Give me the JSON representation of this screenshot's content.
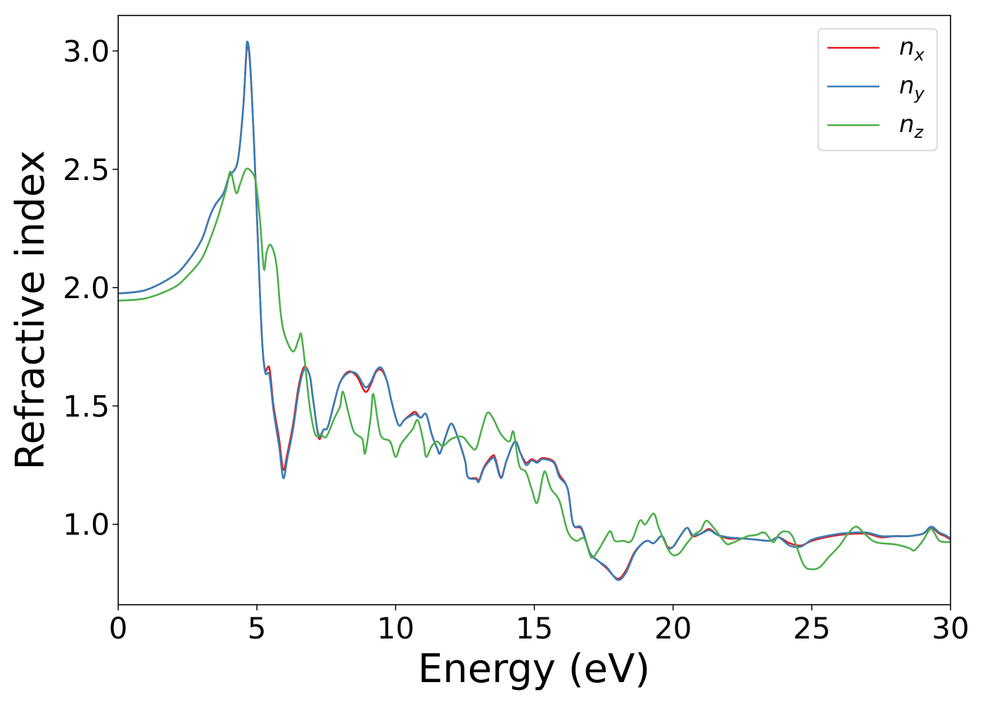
{
  "chart_data": {
    "type": "line",
    "title": "",
    "xlabel": "Energy (eV)",
    "ylabel": "Refractive index",
    "xlim": [
      0,
      30
    ],
    "ylim": [
      0.66,
      3.15
    ],
    "xticks": [
      0,
      5,
      10,
      15,
      20,
      25,
      30
    ],
    "xtick_labels": [
      "0",
      "5",
      "10",
      "15",
      "20",
      "25",
      "30"
    ],
    "yticks": [
      1.0,
      1.5,
      2.0,
      2.5,
      3.0
    ],
    "ytick_labels": [
      "1.0",
      "1.5",
      "2.0",
      "2.5",
      "3.0"
    ],
    "grid": false,
    "legend_placement": "top-right",
    "series": [
      {
        "name": "n",
        "subscript": "x",
        "color": "#e41a1c",
        "x": [
          0,
          1,
          2,
          2.5,
          3,
          3.3,
          3.5,
          3.8,
          4.0,
          4.3,
          4.5,
          4.6,
          4.65,
          4.75,
          4.9,
          5.0,
          5.1,
          5.2,
          5.3,
          5.45,
          5.6,
          5.8,
          5.95,
          6.1,
          6.3,
          6.5,
          6.7,
          6.9,
          7.0,
          7.15,
          7.25,
          7.4,
          7.55,
          7.8,
          8.0,
          8.3,
          8.6,
          8.9,
          9.1,
          9.3,
          9.5,
          9.7,
          9.85,
          10.1,
          10.3,
          10.5,
          10.7,
          10.9,
          11.1,
          11.3,
          11.5,
          11.6,
          11.8,
          12.0,
          12.2,
          12.5,
          12.6,
          12.9,
          13.0,
          13.2,
          13.5,
          13.6,
          13.8,
          14.0,
          14.3,
          14.5,
          14.7,
          14.9,
          15.1,
          15.3,
          15.7,
          15.9,
          16.2,
          16.4,
          16.7,
          17.0,
          17.3,
          17.6,
          18.0,
          18.3,
          18.6,
          18.9,
          19.1,
          19.3,
          19.6,
          19.8,
          20.0,
          20.2,
          20.5,
          20.7,
          21.0,
          21.3,
          21.6,
          22,
          22.5,
          23,
          23.5,
          23.8,
          24.2,
          24.6,
          25,
          25.5,
          26,
          26.5,
          27,
          27.5,
          28,
          28.5,
          29,
          29.3,
          29.6,
          29.8,
          30
        ],
        "y": [
          1.975,
          1.99,
          2.05,
          2.11,
          2.2,
          2.3,
          2.35,
          2.4,
          2.47,
          2.53,
          2.75,
          2.95,
          3.02,
          2.95,
          2.6,
          2.3,
          2.0,
          1.75,
          1.65,
          1.66,
          1.5,
          1.36,
          1.23,
          1.3,
          1.42,
          1.58,
          1.665,
          1.63,
          1.55,
          1.42,
          1.36,
          1.4,
          1.41,
          1.52,
          1.6,
          1.645,
          1.625,
          1.56,
          1.59,
          1.645,
          1.65,
          1.6,
          1.52,
          1.42,
          1.44,
          1.46,
          1.475,
          1.45,
          1.465,
          1.38,
          1.32,
          1.3,
          1.37,
          1.425,
          1.38,
          1.27,
          1.2,
          1.195,
          1.185,
          1.245,
          1.29,
          1.275,
          1.2,
          1.27,
          1.35,
          1.3,
          1.26,
          1.275,
          1.265,
          1.28,
          1.265,
          1.21,
          1.15,
          1.0,
          0.98,
          0.88,
          0.845,
          0.815,
          0.77,
          0.805,
          0.88,
          0.92,
          0.93,
          0.92,
          0.95,
          0.905,
          0.905,
          0.94,
          0.985,
          0.95,
          0.96,
          0.98,
          0.955,
          0.94,
          0.94,
          0.935,
          0.93,
          0.945,
          0.92,
          0.91,
          0.93,
          0.945,
          0.955,
          0.96,
          0.96,
          0.945,
          0.95,
          0.95,
          0.96,
          0.985,
          0.96,
          0.95,
          0.935
        ]
      },
      {
        "name": "n",
        "subscript": "y",
        "color": "#377eb8",
        "x": [
          0,
          1,
          2,
          2.5,
          3,
          3.3,
          3.5,
          3.8,
          4.0,
          4.3,
          4.5,
          4.6,
          4.65,
          4.75,
          4.9,
          5.0,
          5.1,
          5.2,
          5.3,
          5.45,
          5.6,
          5.8,
          5.95,
          6.1,
          6.3,
          6.5,
          6.7,
          6.9,
          7.0,
          7.15,
          7.25,
          7.4,
          7.55,
          7.8,
          8.0,
          8.3,
          8.6,
          8.9,
          9.1,
          9.3,
          9.5,
          9.7,
          9.85,
          10.1,
          10.3,
          10.5,
          10.7,
          10.9,
          11.1,
          11.3,
          11.5,
          11.6,
          11.8,
          12.0,
          12.2,
          12.5,
          12.6,
          12.9,
          13.0,
          13.2,
          13.5,
          13.6,
          13.8,
          14.0,
          14.3,
          14.5,
          14.7,
          14.9,
          15.1,
          15.3,
          15.7,
          15.9,
          16.2,
          16.4,
          16.7,
          17.0,
          17.3,
          17.6,
          18.0,
          18.3,
          18.6,
          18.9,
          19.1,
          19.3,
          19.6,
          19.8,
          20.0,
          20.2,
          20.5,
          20.7,
          21.0,
          21.3,
          21.6,
          22,
          22.5,
          23,
          23.5,
          23.8,
          24.2,
          24.6,
          25,
          25.5,
          26,
          26.5,
          27,
          27.5,
          28,
          28.5,
          29,
          29.3,
          29.6,
          29.8,
          30
        ],
        "y": [
          1.975,
          1.99,
          2.05,
          2.11,
          2.2,
          2.3,
          2.35,
          2.4,
          2.47,
          2.53,
          2.75,
          2.96,
          3.04,
          2.96,
          2.6,
          2.3,
          2.0,
          1.75,
          1.64,
          1.63,
          1.48,
          1.33,
          1.195,
          1.28,
          1.4,
          1.56,
          1.655,
          1.63,
          1.55,
          1.42,
          1.37,
          1.4,
          1.41,
          1.52,
          1.6,
          1.64,
          1.635,
          1.58,
          1.6,
          1.65,
          1.66,
          1.6,
          1.52,
          1.42,
          1.44,
          1.455,
          1.465,
          1.45,
          1.465,
          1.38,
          1.32,
          1.3,
          1.37,
          1.425,
          1.38,
          1.27,
          1.2,
          1.19,
          1.18,
          1.24,
          1.28,
          1.265,
          1.195,
          1.27,
          1.35,
          1.3,
          1.25,
          1.27,
          1.26,
          1.275,
          1.26,
          1.2,
          1.15,
          1.0,
          0.985,
          0.88,
          0.845,
          0.82,
          0.765,
          0.795,
          0.875,
          0.92,
          0.93,
          0.92,
          0.95,
          0.9,
          0.905,
          0.94,
          0.985,
          0.955,
          0.96,
          0.975,
          0.955,
          0.945,
          0.94,
          0.935,
          0.93,
          0.945,
          0.91,
          0.905,
          0.935,
          0.95,
          0.96,
          0.965,
          0.965,
          0.95,
          0.95,
          0.95,
          0.96,
          0.99,
          0.965,
          0.955,
          0.94
        ]
      },
      {
        "name": "n",
        "subscript": "z",
        "color": "#4daf4a",
        "x": [
          0,
          1,
          2,
          2.5,
          3,
          3.3,
          3.6,
          3.9,
          4.05,
          4.25,
          4.4,
          4.6,
          4.8,
          4.95,
          5.1,
          5.25,
          5.35,
          5.5,
          5.7,
          5.85,
          6.0,
          6.3,
          6.5,
          6.6,
          6.75,
          6.9,
          7.1,
          7.3,
          7.5,
          7.8,
          8.0,
          8.1,
          8.3,
          8.5,
          8.8,
          8.9,
          9.1,
          9.2,
          9.45,
          9.8,
          10.0,
          10.2,
          10.6,
          10.8,
          11.0,
          11.1,
          11.3,
          11.5,
          11.7,
          12.0,
          12.4,
          12.7,
          12.9,
          13.1,
          13.3,
          13.5,
          13.8,
          14.1,
          14.25,
          14.45,
          14.7,
          14.9,
          15.1,
          15.3,
          15.4,
          15.6,
          15.9,
          16.2,
          16.5,
          16.8,
          17.05,
          17.3,
          17.6,
          17.75,
          17.9,
          18.2,
          18.5,
          18.8,
          19.0,
          19.3,
          19.5,
          19.9,
          20.2,
          20.5,
          20.8,
          21.0,
          21.2,
          21.5,
          21.9,
          22.1,
          22.4,
          22.7,
          23,
          23.3,
          23.6,
          23.8,
          24.0,
          24.3,
          24.7,
          25.0,
          25.3,
          25.6,
          26.0,
          26.3,
          26.6,
          26.9,
          27.2,
          27.5,
          28,
          28.5,
          28.7,
          29,
          29.3,
          29.6,
          30
        ],
        "y": [
          1.945,
          1.955,
          2.0,
          2.05,
          2.12,
          2.2,
          2.3,
          2.42,
          2.49,
          2.4,
          2.44,
          2.5,
          2.49,
          2.45,
          2.3,
          2.08,
          2.15,
          2.18,
          2.1,
          1.9,
          1.8,
          1.73,
          1.78,
          1.8,
          1.66,
          1.5,
          1.38,
          1.38,
          1.37,
          1.45,
          1.5,
          1.56,
          1.47,
          1.39,
          1.36,
          1.3,
          1.45,
          1.55,
          1.38,
          1.35,
          1.285,
          1.34,
          1.4,
          1.44,
          1.35,
          1.285,
          1.33,
          1.35,
          1.33,
          1.36,
          1.37,
          1.33,
          1.32,
          1.4,
          1.47,
          1.45,
          1.38,
          1.35,
          1.39,
          1.25,
          1.22,
          1.15,
          1.09,
          1.2,
          1.22,
          1.15,
          1.1,
          0.97,
          0.93,
          0.94,
          0.86,
          0.89,
          0.95,
          0.97,
          0.93,
          0.93,
          0.93,
          1.015,
          1.0,
          1.045,
          0.98,
          0.88,
          0.875,
          0.92,
          0.96,
          0.975,
          1.015,
          0.98,
          0.92,
          0.92,
          0.935,
          0.95,
          0.955,
          0.965,
          0.925,
          0.955,
          0.97,
          0.95,
          0.83,
          0.81,
          0.82,
          0.86,
          0.91,
          0.96,
          0.99,
          0.96,
          0.93,
          0.92,
          0.915,
          0.9,
          0.89,
          0.93,
          0.98,
          0.93,
          0.925
        ]
      }
    ]
  }
}
